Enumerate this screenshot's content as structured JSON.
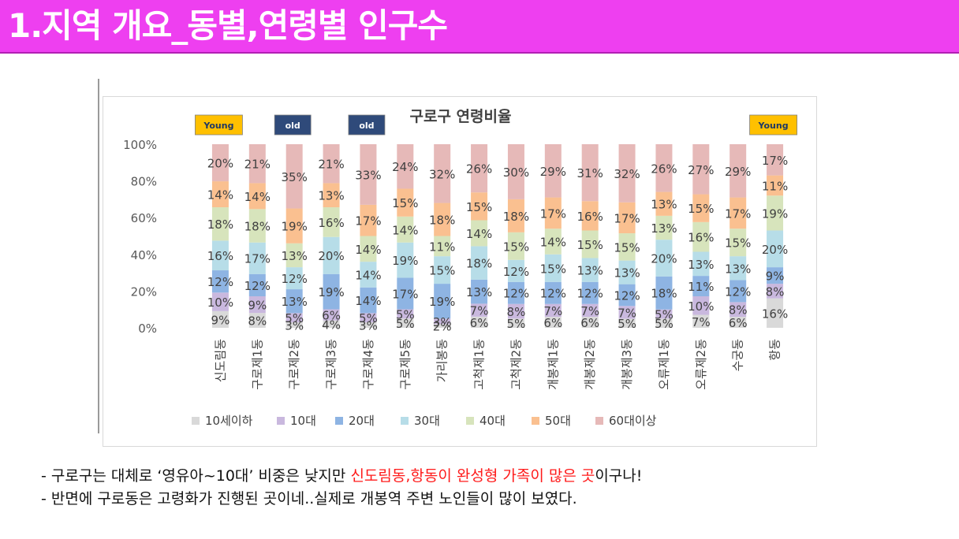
{
  "header": {
    "title": "1.지역 개요_동별,연령별 인구수",
    "bg_color": "#ee3ff0"
  },
  "chart_data": {
    "type": "bar",
    "stacked": "percent",
    "title": "구로구 연령비율",
    "categories": [
      "신도림동",
      "구로제1동",
      "구로제2동",
      "구로제3동",
      "구로제4동",
      "구로제5동",
      "가리봉동",
      "고척제1동",
      "고척제2동",
      "개봉제1동",
      "개봉제2동",
      "개봉제3동",
      "오류제1동",
      "오류제2동",
      "수궁동",
      "항동"
    ],
    "ylim": [
      0,
      100
    ],
    "yticks": [
      "0%",
      "20%",
      "40%",
      "60%",
      "80%",
      "100%"
    ],
    "series": [
      {
        "name": "10세이하",
        "color": "#d9d9d9",
        "values": [
          9,
          8,
          3,
          4,
          3,
          5,
          2,
          6,
          5,
          6,
          6,
          5,
          5,
          7,
          6,
          16
        ]
      },
      {
        "name": "10대",
        "color": "#c9b8de",
        "values": [
          10,
          9,
          5,
          6,
          5,
          5,
          3,
          7,
          8,
          7,
          7,
          7,
          5,
          10,
          8,
          8
        ]
      },
      {
        "name": "20대",
        "color": "#8eb4e3",
        "values": [
          12,
          12,
          13,
          19,
          14,
          17,
          19,
          13,
          12,
          12,
          12,
          12,
          18,
          11,
          12,
          9
        ]
      },
      {
        "name": "30대",
        "color": "#b7dde8",
        "values": [
          16,
          17,
          12,
          20,
          14,
          19,
          15,
          18,
          12,
          15,
          13,
          13,
          20,
          13,
          13,
          20
        ]
      },
      {
        "name": "40대",
        "color": "#d7e4bc",
        "values": [
          18,
          18,
          13,
          16,
          14,
          14,
          11,
          14,
          15,
          14,
          15,
          15,
          13,
          16,
          15,
          19
        ]
      },
      {
        "name": "50대",
        "color": "#fac090",
        "values": [
          14,
          14,
          19,
          13,
          17,
          15,
          18,
          15,
          18,
          17,
          16,
          17,
          13,
          15,
          17,
          11
        ]
      },
      {
        "name": "60대이상",
        "color": "#e6b9b8",
        "values": [
          20,
          21,
          35,
          21,
          33,
          24,
          32,
          26,
          30,
          29,
          31,
          32,
          26,
          27,
          29,
          17
        ]
      }
    ],
    "badges": [
      {
        "text": "Young",
        "category": "신도림동",
        "bg": "#ffc000",
        "fg": "#1f3864"
      },
      {
        "text": "old",
        "category": "구로제2동",
        "bg": "#2f4a7a",
        "fg": "#ffffff"
      },
      {
        "text": "old",
        "category": "구로제4동",
        "bg": "#2f4a7a",
        "fg": "#ffffff"
      },
      {
        "text": "Young",
        "category": "항동",
        "bg": "#ffc000",
        "fg": "#1f3864"
      }
    ],
    "grid": false,
    "legend_position": "bottom"
  },
  "notes": {
    "line1_prefix": "- 구로구는 대체로 ‘영유아~10대’ 비중은 낮지만 ",
    "line1_highlight": "신도림동,항동이 완성형 가족이 많은 곳",
    "line1_suffix": "이구나!",
    "line2": "- 반면에 구로동은 고령화가 진행된 곳이네..실제로 개봉역 주변 노인들이 많이 보였다.",
    "highlight_color": "#ff1a1a"
  }
}
